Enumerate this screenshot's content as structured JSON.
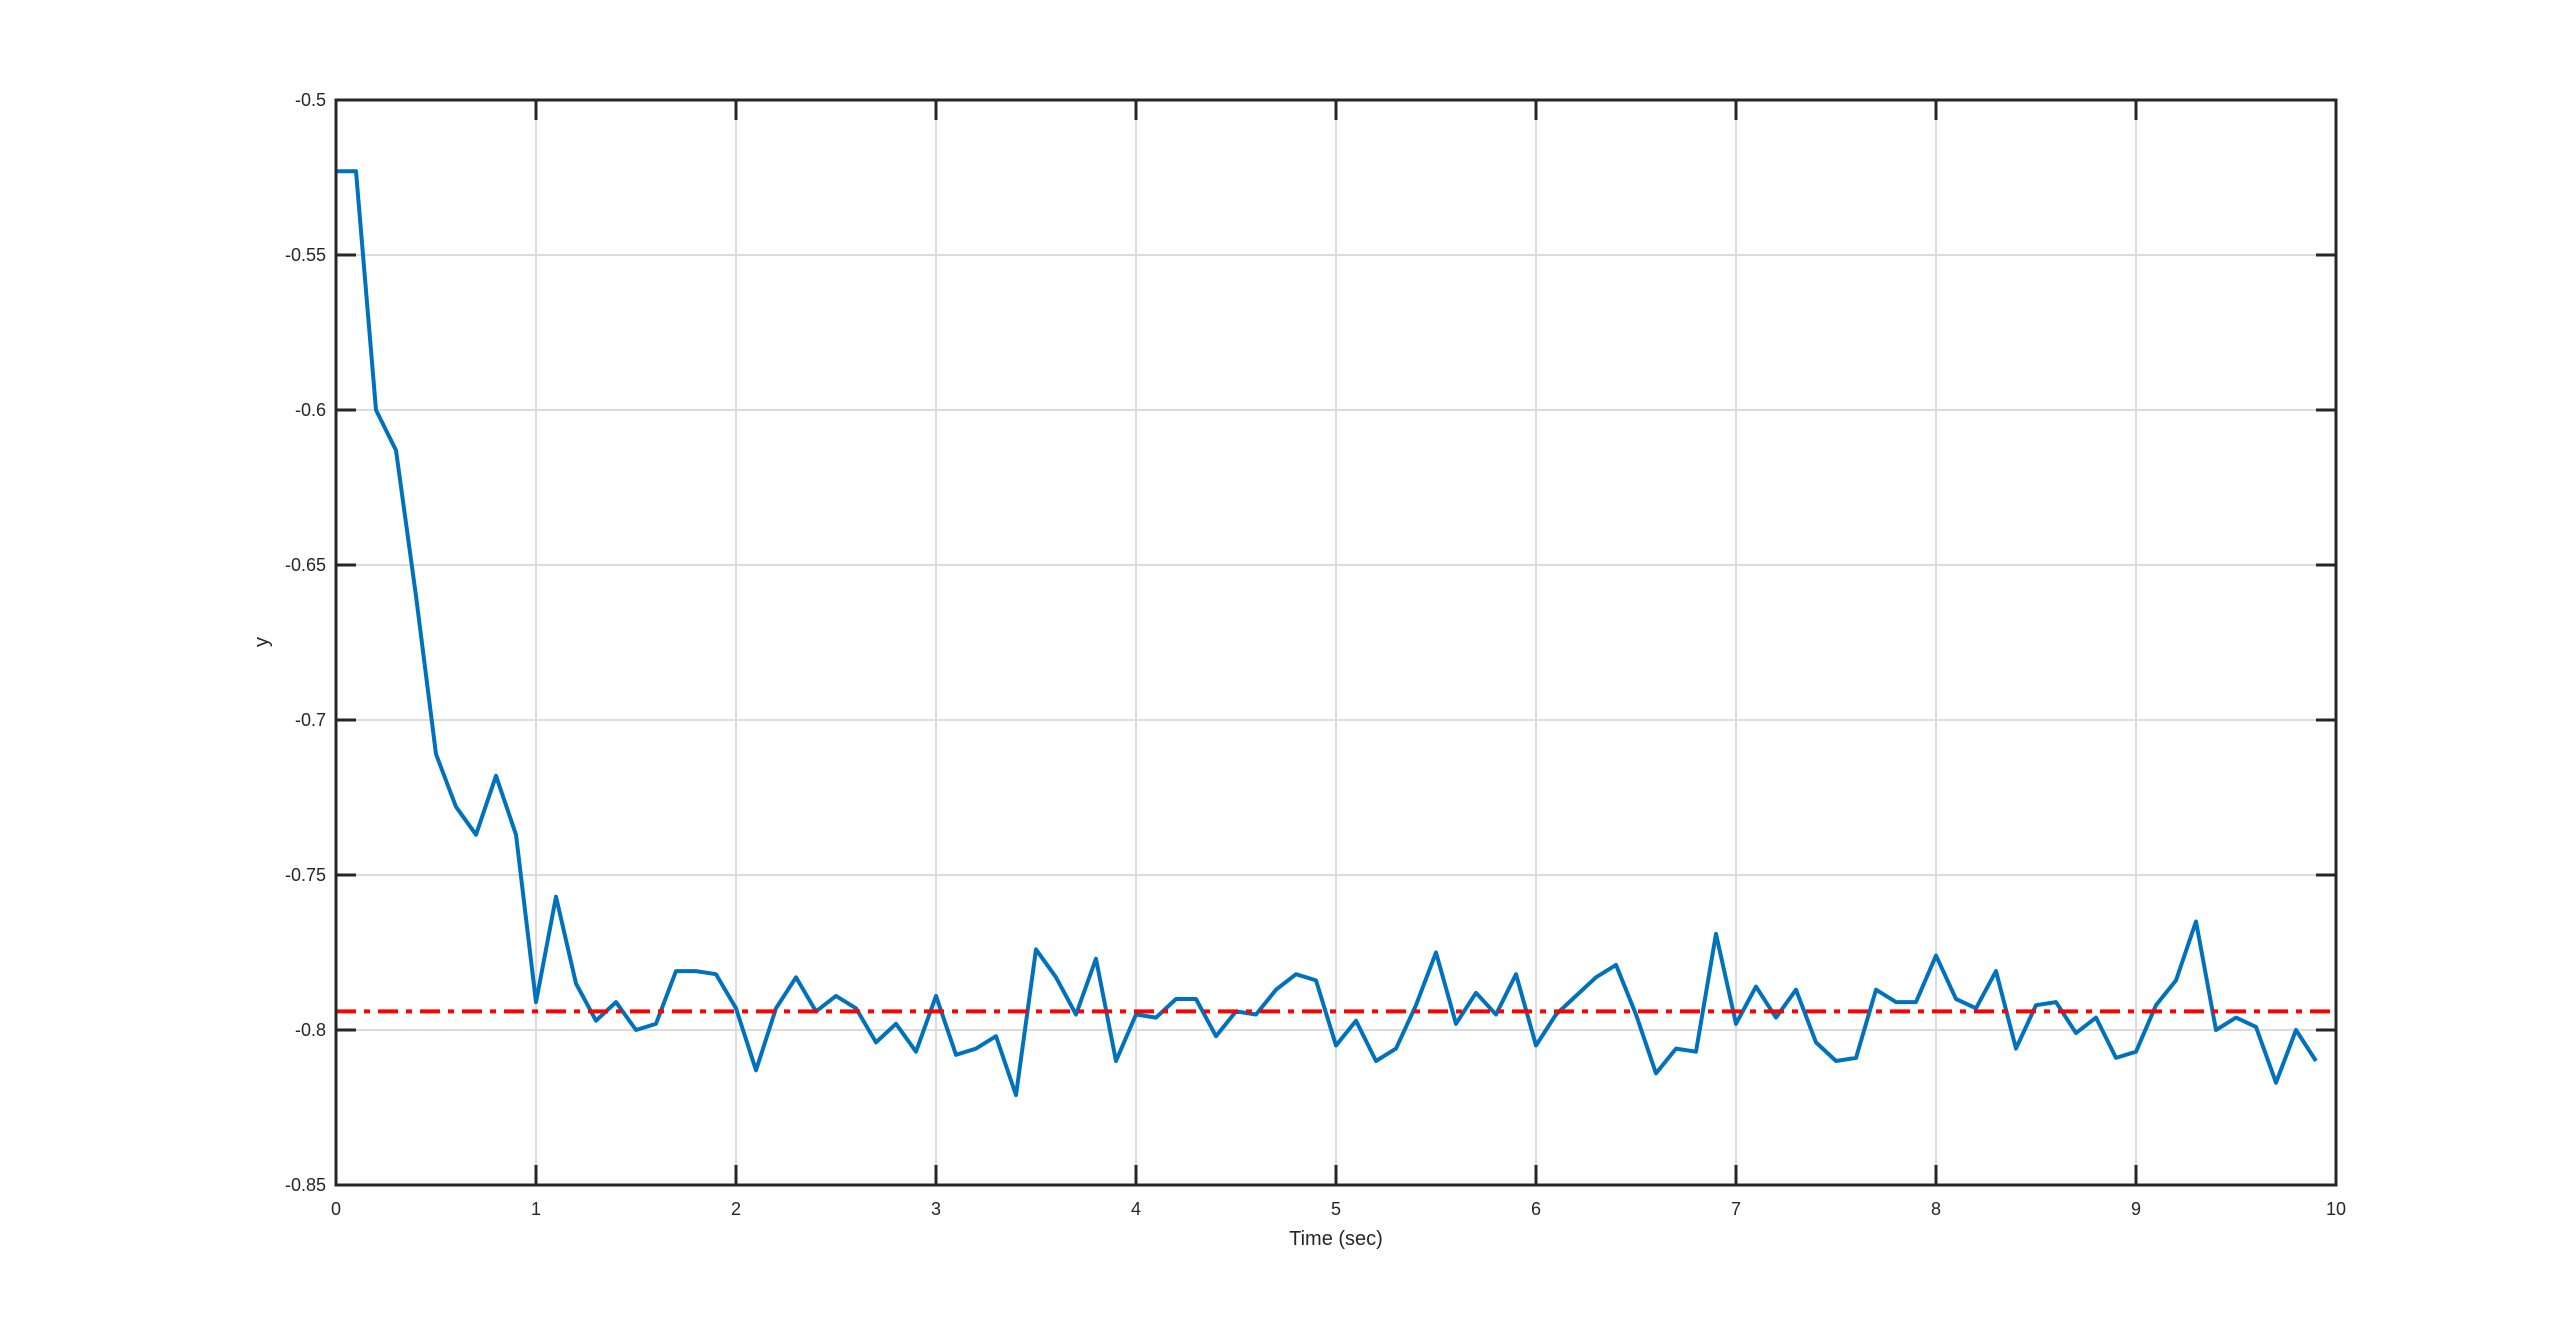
{
  "chart_data": {
    "type": "line",
    "title": "",
    "xlabel": "Time (sec)",
    "ylabel": "y",
    "xlim": [
      0,
      10
    ],
    "ylim": [
      -0.85,
      -0.5
    ],
    "xticks": [
      0,
      1,
      2,
      3,
      4,
      5,
      6,
      7,
      8,
      9,
      10
    ],
    "yticks": [
      -0.5,
      -0.55,
      -0.6,
      -0.65,
      -0.7,
      -0.75,
      -0.8,
      -0.85
    ],
    "xtick_labels": [
      "0",
      "1",
      "2",
      "3",
      "4",
      "5",
      "6",
      "7",
      "8",
      "9",
      "10"
    ],
    "ytick_labels": [
      "-0.5",
      "-0.55",
      "-0.6",
      "-0.65",
      "-0.7",
      "-0.75",
      "-0.8",
      "-0.85"
    ],
    "grid": true,
    "colors": {
      "series": "#0072BD",
      "reference": "#FF0000",
      "grid": "#dcdcdc",
      "axes": "#262626"
    },
    "series": [
      {
        "style": "solid",
        "x": [
          0,
          0.1,
          0.2,
          0.3,
          0.4,
          0.5,
          0.6,
          0.7,
          0.8,
          0.9,
          1.0,
          1.1,
          1.2,
          1.3,
          1.4,
          1.5,
          1.6,
          1.7,
          1.8,
          1.9,
          2.0,
          2.1,
          2.2,
          2.3,
          2.4,
          2.5,
          2.6,
          2.7,
          2.8,
          2.9,
          3.0,
          3.1,
          3.2,
          3.3,
          3.4,
          3.5,
          3.6,
          3.7,
          3.8,
          3.9,
          4.0,
          4.1,
          4.2,
          4.3,
          4.4,
          4.5,
          4.6,
          4.7,
          4.8,
          4.9,
          5.0,
          5.1,
          5.2,
          5.3,
          5.4,
          5.5,
          5.6,
          5.7,
          5.8,
          5.9,
          6.0,
          6.1,
          6.2,
          6.3,
          6.4,
          6.5,
          6.6,
          6.7,
          6.8,
          6.9,
          7.0,
          7.1,
          7.2,
          7.3,
          7.4,
          7.5,
          7.6,
          7.7,
          7.8,
          7.9,
          8.0,
          8.1,
          8.2,
          8.3,
          8.4,
          8.5,
          8.6,
          8.7,
          8.8,
          8.9,
          9.0,
          9.1,
          9.2,
          9.3,
          9.4,
          9.5,
          9.6,
          9.7,
          9.8,
          9.9
        ],
        "y": [
          -0.523,
          -0.523,
          -0.6,
          -0.613,
          -0.66,
          -0.711,
          -0.728,
          -0.737,
          -0.718,
          -0.737,
          -0.791,
          -0.757,
          -0.785,
          -0.797,
          -0.791,
          -0.8,
          -0.798,
          -0.781,
          -0.781,
          -0.782,
          -0.793,
          -0.813,
          -0.793,
          -0.783,
          -0.794,
          -0.789,
          -0.793,
          -0.804,
          -0.798,
          -0.807,
          -0.789,
          -0.808,
          -0.806,
          -0.802,
          -0.821,
          -0.774,
          -0.783,
          -0.795,
          -0.777,
          -0.81,
          -0.795,
          -0.796,
          -0.79,
          -0.79,
          -0.802,
          -0.794,
          -0.795,
          -0.787,
          -0.782,
          -0.784,
          -0.805,
          -0.797,
          -0.81,
          -0.806,
          -0.792,
          -0.775,
          -0.798,
          -0.788,
          -0.795,
          -0.782,
          -0.805,
          -0.795,
          -0.789,
          -0.783,
          -0.779,
          -0.795,
          -0.814,
          -0.806,
          -0.807,
          -0.769,
          -0.798,
          -0.786,
          -0.796,
          -0.787,
          -0.804,
          -0.81,
          -0.809,
          -0.787,
          -0.791,
          -0.791,
          -0.776,
          -0.79,
          -0.793,
          -0.781,
          -0.806,
          -0.792,
          -0.791,
          -0.801,
          -0.796,
          -0.809,
          -0.807,
          -0.792,
          -0.784,
          -0.765,
          -0.8,
          -0.796,
          -0.799,
          -0.817,
          -0.8,
          -0.81
        ]
      },
      {
        "style": "dash-dot",
        "x": [
          0,
          10
        ],
        "y": [
          -0.794,
          -0.794
        ]
      }
    ]
  }
}
